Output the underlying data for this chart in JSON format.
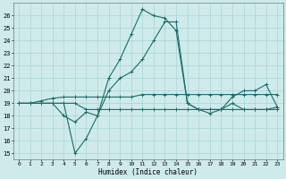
{
  "xlabel": "Humidex (Indice chaleur)",
  "xlim": [
    -0.5,
    23.5
  ],
  "ylim": [
    14.5,
    27
  ],
  "yticks": [
    15,
    16,
    17,
    18,
    19,
    20,
    21,
    22,
    23,
    24,
    25,
    26
  ],
  "xticks": [
    0,
    1,
    2,
    3,
    4,
    5,
    6,
    7,
    8,
    9,
    10,
    11,
    12,
    13,
    14,
    15,
    16,
    17,
    18,
    19,
    20,
    21,
    22,
    23
  ],
  "background_color": "#ceeaea",
  "grid_color": "#a8d4d4",
  "line_color": "#1a6b6b",
  "lines": [
    {
      "x": [
        0,
        1,
        2,
        3,
        4,
        5,
        6,
        7,
        8,
        9,
        10,
        11,
        12,
        13,
        14,
        15,
        16,
        17,
        18,
        19,
        20,
        21,
        22,
        23
      ],
      "y": [
        19,
        19,
        19,
        19,
        19,
        15,
        16.2,
        18,
        21,
        22.5,
        24.5,
        26.5,
        26,
        25.8,
        24.8,
        19,
        18.5,
        18.5,
        18.5,
        19,
        18.5,
        18.5,
        18.5,
        18.7
      ]
    },
    {
      "x": [
        0,
        1,
        2,
        3,
        4,
        5,
        6,
        7,
        8,
        9,
        10,
        11,
        12,
        13,
        14,
        15,
        16,
        17,
        18,
        19,
        20,
        21,
        22,
        23
      ],
      "y": [
        19,
        19,
        19,
        19,
        18,
        17.5,
        18.3,
        18,
        20,
        21,
        21.5,
        22.5,
        24,
        25.5,
        25.5,
        19,
        18.5,
        18.2,
        18.5,
        19.5,
        20,
        20,
        20.5,
        18.7
      ]
    },
    {
      "x": [
        0,
        1,
        2,
        3,
        4,
        5,
        6,
        7,
        8,
        9,
        10,
        11,
        12,
        13,
        14,
        15,
        16,
        17,
        18,
        19,
        20,
        21,
        22,
        23
      ],
      "y": [
        19,
        19,
        19.2,
        19.4,
        19.5,
        19.5,
        19.5,
        19.5,
        19.5,
        19.5,
        19.5,
        19.7,
        19.7,
        19.7,
        19.7,
        19.7,
        19.7,
        19.7,
        19.7,
        19.7,
        19.7,
        19.7,
        19.7,
        19.7
      ]
    },
    {
      "x": [
        0,
        1,
        2,
        3,
        4,
        5,
        6,
        7,
        8,
        9,
        10,
        11,
        12,
        13,
        14,
        15,
        16,
        17,
        18,
        19,
        20,
        21,
        22,
        23
      ],
      "y": [
        19,
        19,
        19,
        19,
        19,
        19,
        18.5,
        18.5,
        18.5,
        18.5,
        18.5,
        18.5,
        18.5,
        18.5,
        18.5,
        18.5,
        18.5,
        18.5,
        18.5,
        18.5,
        18.5,
        18.5,
        18.5,
        18.5
      ]
    }
  ]
}
